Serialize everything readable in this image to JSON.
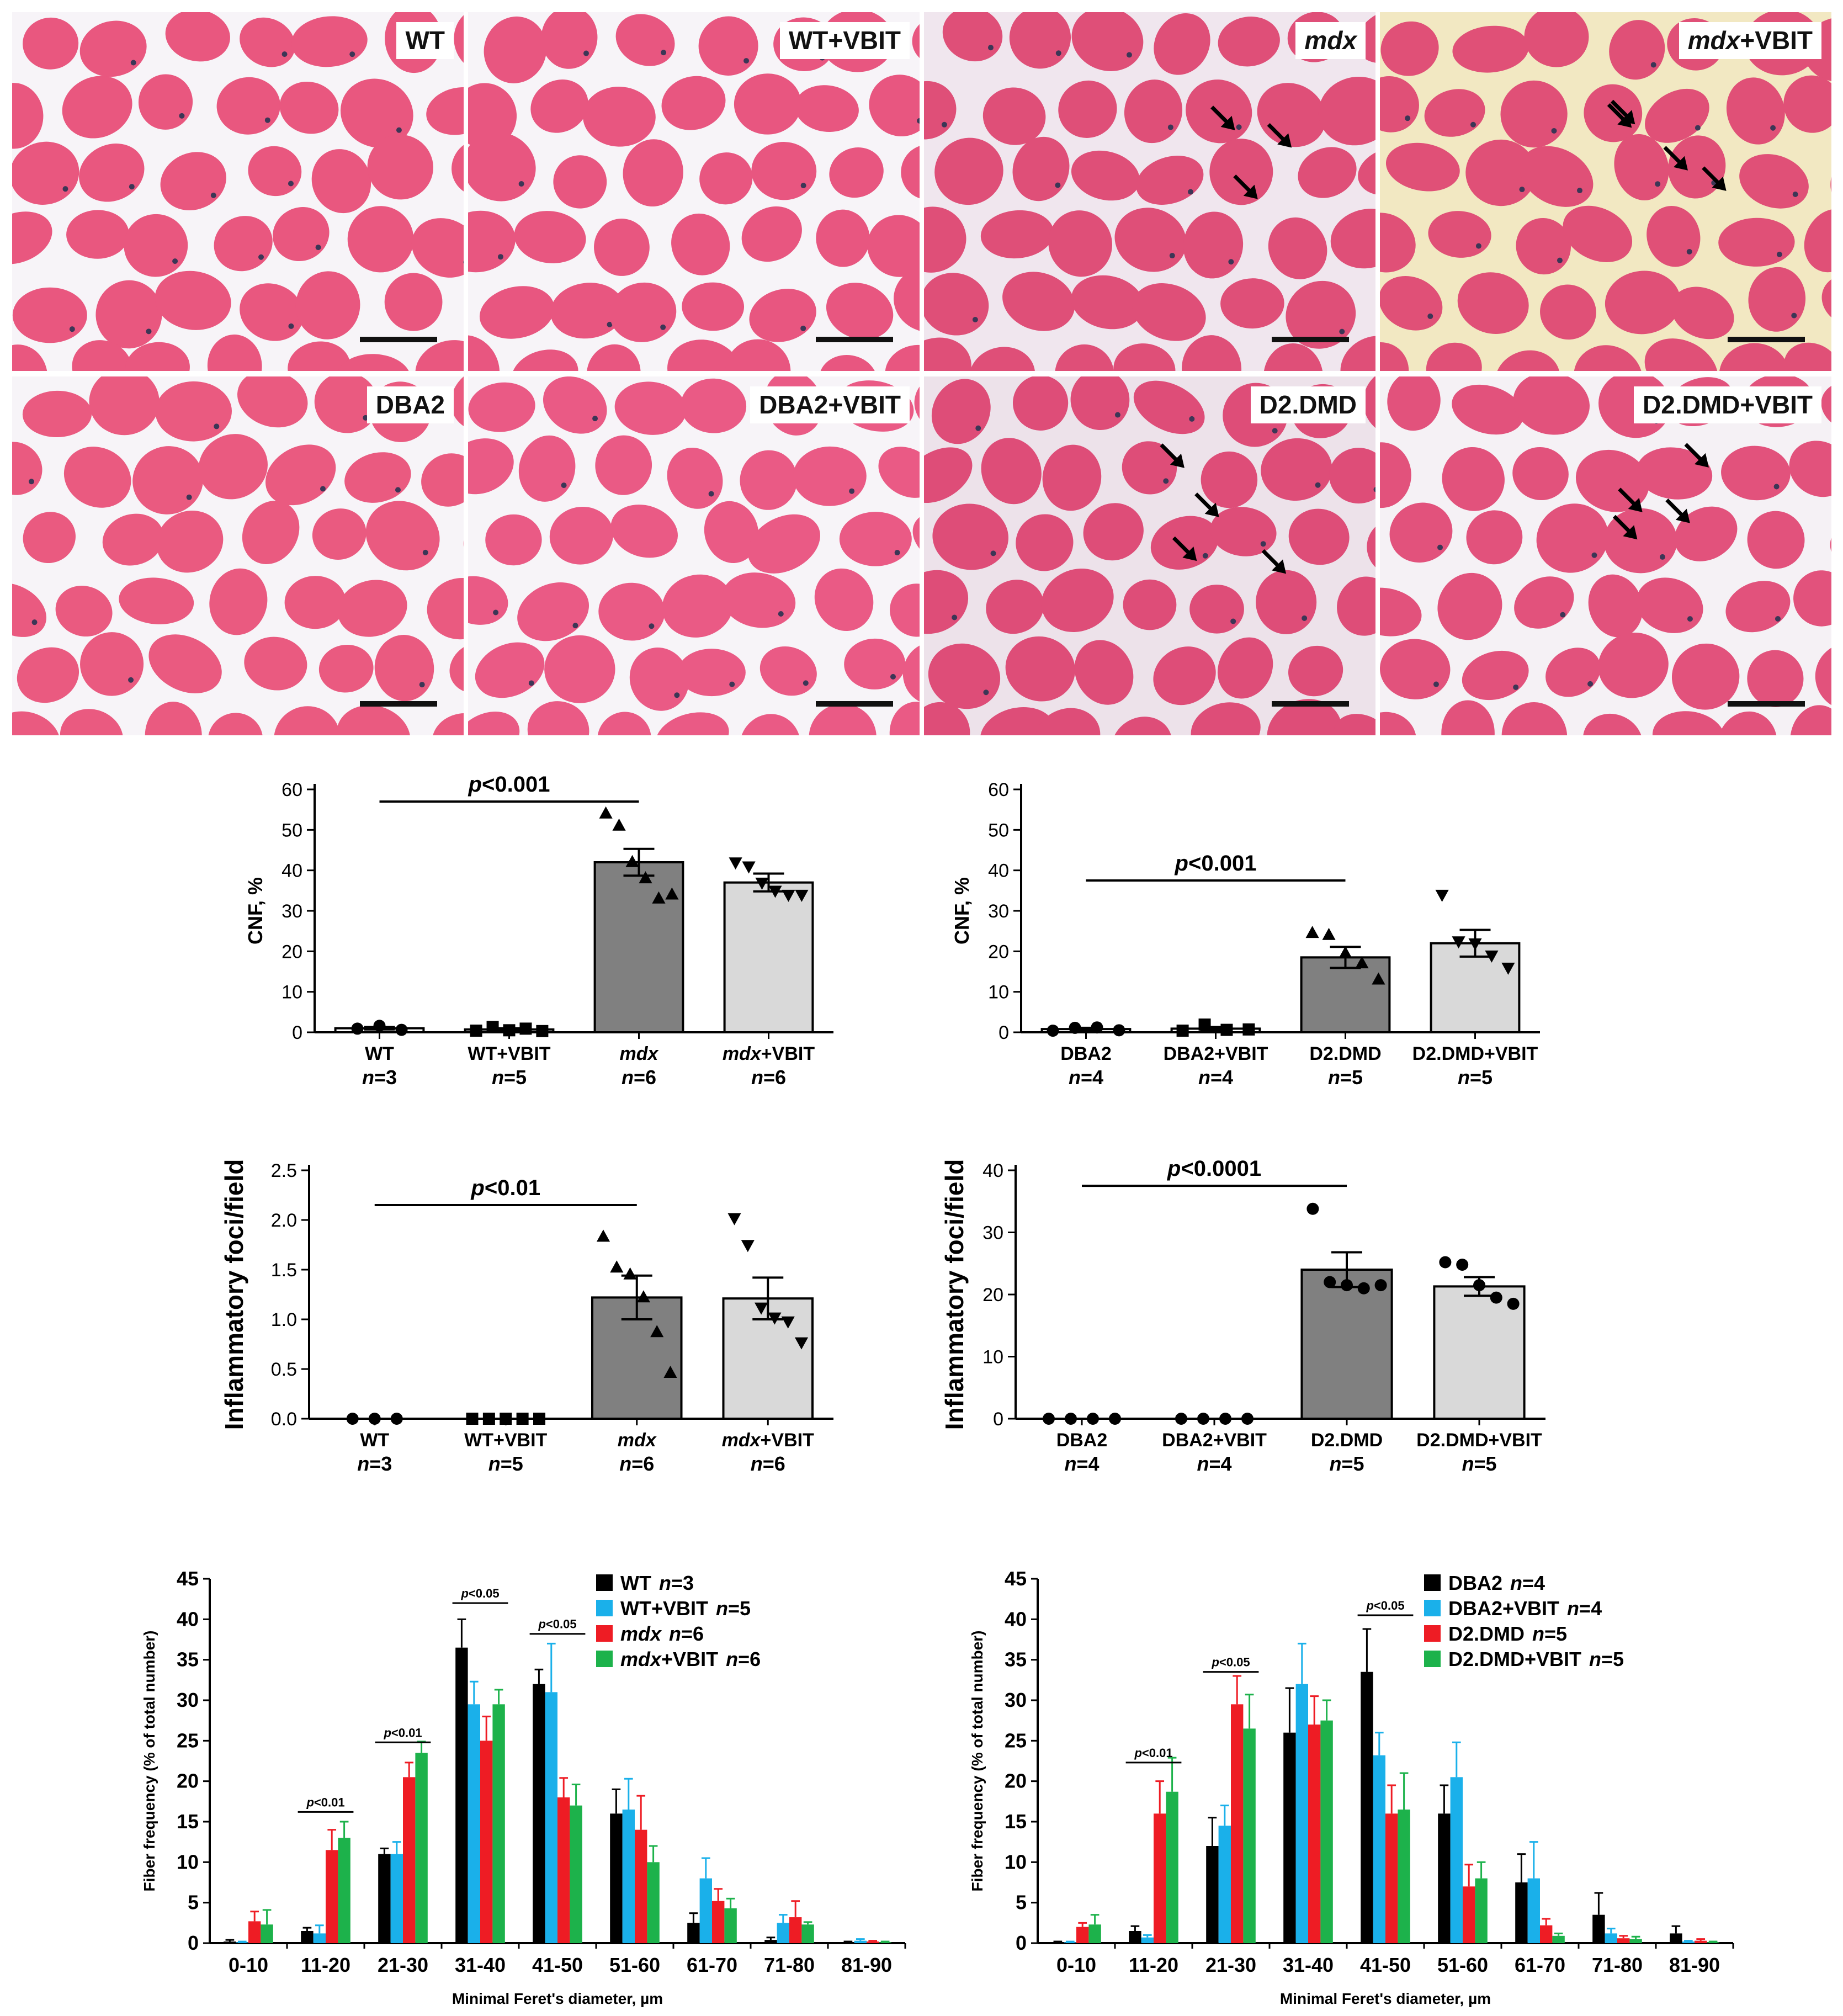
{
  "panels": [
    {
      "label": "WT",
      "italic_part": "",
      "rest": "WT",
      "bg": "#f7f4f8",
      "fill": "#e9577f",
      "arrows": 0
    },
    {
      "label": "WT+VBIT",
      "italic_part": "",
      "rest": "WT+VBIT",
      "bg": "#f7f4f8",
      "fill": "#e85680",
      "arrows": 0
    },
    {
      "label": "mdx",
      "italic_part": "mdx",
      "rest": "",
      "bg": "#f0e6ee",
      "fill": "#df4f78",
      "arrows": 3
    },
    {
      "label": "mdx+VBIT",
      "italic_part": "mdx",
      "rest": "+VBIT",
      "bg": "#f2e8c2",
      "fill": "#e05077",
      "arrows": 4
    },
    {
      "label": "DBA2",
      "italic_part": "",
      "rest": "DBA2",
      "bg": "#f7f4f8",
      "fill": "#ea5a80",
      "arrows": 0
    },
    {
      "label": "DBA2+VBIT",
      "italic_part": "",
      "rest": "DBA2+VBIT",
      "bg": "#f7f4f8",
      "fill": "#ea5a85",
      "arrows": 0
    },
    {
      "label": "D2.DMD",
      "italic_part": "",
      "rest": "D2.DMD",
      "bg": "#ede2ea",
      "fill": "#de4d78",
      "arrows": 4
    },
    {
      "label": "D2.DMD+VBIT",
      "italic_part": "",
      "rest": "D2.DMD+VBIT",
      "bg": "#f5f1f5",
      "fill": "#e2527c",
      "arrows": 4
    }
  ],
  "colors": {
    "black": "#000000",
    "blue": "#1ab0ea",
    "red": "#ee1c24",
    "green": "#1db24b",
    "dark_gray": "#808080",
    "light_gray": "#d9d9d9"
  },
  "chart_data": [
    {
      "type": "bar",
      "id": "cnf_left",
      "ylabel": "CNF, %",
      "ylim": [
        0,
        60
      ],
      "yticks": [
        0,
        10,
        20,
        30,
        40,
        50,
        60
      ],
      "categories": [
        {
          "name": "WT",
          "italic": false,
          "n": "n=3"
        },
        {
          "name": "WT+VBIT",
          "italic": false,
          "n": "n=5"
        },
        {
          "name": "mdx",
          "italic": true,
          "n": "n=6"
        },
        {
          "name": "mdx+VBIT",
          "italic": true,
          "n": "n=6"
        }
      ],
      "values": [
        1.0,
        0.7,
        42.0,
        37.0
      ],
      "errors": [
        0.3,
        0.3,
        3.3,
        2.2
      ],
      "bar_fills": [
        "#ffffff",
        "#ffffff",
        "#808080",
        "#d9d9d9"
      ],
      "markers": [
        "circle",
        "square",
        "triangle-up",
        "triangle-down"
      ],
      "points": [
        [
          0.9,
          1.6,
          0.6
        ],
        [
          0.4,
          1.3,
          0.5,
          0.9,
          0.3
        ],
        [
          54,
          51,
          42,
          38,
          33,
          34
        ],
        [
          42,
          41,
          37,
          35,
          34,
          34
        ]
      ],
      "significance": {
        "label": "p<0.001",
        "from": 0,
        "to": 2,
        "y": 57
      }
    },
    {
      "type": "bar",
      "id": "cnf_right",
      "ylabel": "CNF, %",
      "ylim": [
        0,
        60
      ],
      "yticks": [
        0,
        10,
        20,
        30,
        40,
        50,
        60
      ],
      "categories": [
        {
          "name": "DBA2",
          "italic": false,
          "n": "n=4"
        },
        {
          "name": "DBA2+VBIT",
          "italic": false,
          "n": "n=4"
        },
        {
          "name": "D2.DMD",
          "italic": false,
          "n": "n=5"
        },
        {
          "name": "D2.DMD+VBIT",
          "italic": false,
          "n": "n=5"
        }
      ],
      "values": [
        0.8,
        0.9,
        18.5,
        22.0
      ],
      "errors": [
        0.3,
        0.4,
        2.6,
        3.3
      ],
      "bar_fills": [
        "#ffffff",
        "#ffffff",
        "#808080",
        "#d9d9d9"
      ],
      "markers": [
        "circle",
        "square",
        "triangle-up",
        "triangle-down"
      ],
      "points": [
        [
          0.4,
          1.1,
          1.2,
          0.5
        ],
        [
          0.4,
          1.9,
          0.6,
          0.7
        ],
        [
          24.5,
          24,
          19.5,
          17,
          13
        ],
        [
          34,
          22.5,
          22,
          19,
          16
        ]
      ],
      "significance": {
        "label": "p<0.001",
        "from": 0,
        "to": 2,
        "y": 37.5
      }
    },
    {
      "type": "bar",
      "id": "inflam_left",
      "ylabel": "Inflammatory foci/field",
      "ylim": [
        0,
        2.5
      ],
      "yticks": [
        0.0,
        0.5,
        1.0,
        1.5,
        2.0,
        2.5
      ],
      "categories": [
        {
          "name": "WT",
          "italic": false,
          "n": "n=3"
        },
        {
          "name": "WT+VBIT",
          "italic": false,
          "n": "n=5"
        },
        {
          "name": "mdx",
          "italic": true,
          "n": "n=6"
        },
        {
          "name": "mdx+VBIT",
          "italic": true,
          "n": "n=6"
        }
      ],
      "values": [
        0.0,
        0.0,
        1.22,
        1.21
      ],
      "errors": [
        0,
        0,
        0.22,
        0.21
      ],
      "bar_fills": [
        "#ffffff",
        "#ffffff",
        "#808080",
        "#d9d9d9"
      ],
      "markers": [
        "circle",
        "square",
        "triangle-up",
        "triangle-down"
      ],
      "points": [
        [
          0,
          0,
          0
        ],
        [
          0,
          0,
          0,
          0,
          0
        ],
        [
          1.83,
          1.52,
          1.45,
          1.22,
          0.87,
          0.46
        ],
        [
          2.02,
          1.75,
          1.12,
          1.02,
          0.98,
          0.77
        ]
      ],
      "significance": {
        "label": "p<0.01",
        "from": 0,
        "to": 2,
        "y": 2.15
      }
    },
    {
      "type": "bar",
      "id": "inflam_right",
      "ylabel": "Inflammatory foci/field",
      "ylim": [
        0,
        40
      ],
      "yticks": [
        0,
        10,
        20,
        30,
        40
      ],
      "categories": [
        {
          "name": "DBA2",
          "italic": false,
          "n": "n=4"
        },
        {
          "name": "DBA2+VBIT",
          "italic": false,
          "n": "n=4"
        },
        {
          "name": "D2.DMD",
          "italic": false,
          "n": "n=5"
        },
        {
          "name": "D2.DMD+VBIT",
          "italic": false,
          "n": "n=5"
        }
      ],
      "values": [
        0.0,
        0.0,
        24.0,
        21.3
      ],
      "errors": [
        0,
        0,
        2.8,
        1.5
      ],
      "bar_fills": [
        "#ffffff",
        "#ffffff",
        "#808080",
        "#d9d9d9"
      ],
      "markers": [
        "circle",
        "circle",
        "circle",
        "circle"
      ],
      "points": [
        [
          0,
          0,
          0,
          0
        ],
        [
          0,
          0,
          0,
          0
        ],
        [
          33.8,
          22,
          21.5,
          21,
          21.5
        ],
        [
          25.2,
          24.8,
          21.5,
          19.5,
          18.5
        ]
      ],
      "significance": {
        "label": "p<0.0001",
        "from": 0,
        "to": 2,
        "y": 37.5
      }
    },
    {
      "type": "bar",
      "id": "feret_left",
      "ylabel": "Fiber frequency (% of total number)",
      "xlabel": "Minimal Feret's diameter, µm",
      "ylim": [
        0,
        45
      ],
      "yticks": [
        0,
        5,
        10,
        15,
        20,
        25,
        30,
        35,
        40,
        45
      ],
      "categories": [
        "0-10",
        "11-20",
        "21-30",
        "31-40",
        "41-50",
        "51-60",
        "61-70",
        "71-80",
        "81-90"
      ],
      "series": [
        {
          "label": "WT",
          "n": "n=3",
          "italic": false,
          "color": "#000000",
          "values": [
            0.2,
            1.5,
            11,
            36.5,
            32,
            16,
            2.5,
            0.4,
            0.1
          ],
          "errors": [
            0.2,
            0.4,
            0.7,
            3.5,
            1.8,
            3,
            1.2,
            0.3,
            0.1
          ]
        },
        {
          "label": "WT+VBIT",
          "n": "n=5",
          "italic": false,
          "color": "#1ab0ea",
          "values": [
            0.1,
            1.2,
            11,
            29.5,
            31,
            16.5,
            8,
            2.5,
            0.3
          ],
          "errors": [
            0.1,
            1.0,
            1.5,
            2.8,
            6,
            3.8,
            2.5,
            1.0,
            0.2
          ]
        },
        {
          "label": "mdx",
          "n": "n=6",
          "italic": true,
          "color": "#ee1c24",
          "values": [
            2.7,
            11.5,
            20.5,
            25,
            18,
            14,
            5.2,
            3.2,
            0.2
          ],
          "errors": [
            1.2,
            2.5,
            1.8,
            3,
            2.4,
            4.2,
            1.5,
            2,
            0.1
          ]
        },
        {
          "label": "mdx+VBIT",
          "n": "n=6",
          "italic": true,
          "color": "#1db24b",
          "values": [
            2.3,
            13,
            23.5,
            29.5,
            17,
            10,
            4.3,
            2.3,
            0.1
          ],
          "errors": [
            1.8,
            2.0,
            1.4,
            1.8,
            2.6,
            2,
            1.2,
            0.3,
            0.1
          ]
        }
      ],
      "significance": [
        {
          "label": "p<0.05",
          "category": 3,
          "y": 42
        },
        {
          "label": "p<0.05",
          "category": 4,
          "y": 38.2
        },
        {
          "label": "p<0.01",
          "category": 2,
          "y": 24.8
        },
        {
          "label": "p<0.01",
          "category": 1,
          "y": 16.2
        }
      ]
    },
    {
      "type": "bar",
      "id": "feret_right",
      "ylabel": "Fiber frequency (% of total number)",
      "xlabel": "Minimal Feret's diameter, µm",
      "ylim": [
        0,
        45
      ],
      "yticks": [
        0,
        5,
        10,
        15,
        20,
        25,
        30,
        35,
        40,
        45
      ],
      "categories": [
        "0-10",
        "11-20",
        "21-30",
        "31-40",
        "41-50",
        "51-60",
        "61-70",
        "71-80",
        "81-90"
      ],
      "series": [
        {
          "label": "DBA2",
          "n": "n=4",
          "italic": false,
          "color": "#000000",
          "values": [
            0.1,
            1.5,
            12,
            26,
            33.5,
            16,
            7.5,
            3.5,
            1.2
          ],
          "errors": [
            0.1,
            0.6,
            3.5,
            5.5,
            5.3,
            3.5,
            3.5,
            2.7,
            0.9
          ]
        },
        {
          "label": "DBA2+VBIT",
          "n": "n=4",
          "italic": false,
          "color": "#1ab0ea",
          "values": [
            0.1,
            0.7,
            14.5,
            32,
            23.2,
            20.5,
            8,
            1.2,
            0.2
          ],
          "errors": [
            0.1,
            0.3,
            2.5,
            5,
            2.8,
            4.3,
            4.5,
            0.6,
            0.1
          ]
        },
        {
          "label": "D2.DMD",
          "n": "n=5",
          "italic": false,
          "color": "#ee1c24",
          "values": [
            2,
            16,
            29.5,
            27,
            16,
            7,
            2.2,
            0.6,
            0.3
          ],
          "errors": [
            0.5,
            4,
            3.5,
            3.5,
            3.5,
            2.7,
            0.8,
            0.3,
            0.2
          ]
        },
        {
          "label": "D2.DMD+VBIT",
          "n": "n=5",
          "italic": false,
          "color": "#1db24b",
          "values": [
            2.3,
            18.7,
            26.5,
            27.5,
            16.5,
            8,
            0.9,
            0.5,
            0.1
          ],
          "errors": [
            1.2,
            4.2,
            4.2,
            2.5,
            4.5,
            2,
            0.3,
            0.3,
            0.1
          ]
        }
      ],
      "significance": [
        {
          "label": "p<0.05",
          "category": 4,
          "y": 40.5
        },
        {
          "label": "p<0.05",
          "category": 2,
          "y": 33.5
        },
        {
          "label": "p<0.01",
          "category": 1,
          "y": 22.3
        }
      ]
    }
  ]
}
